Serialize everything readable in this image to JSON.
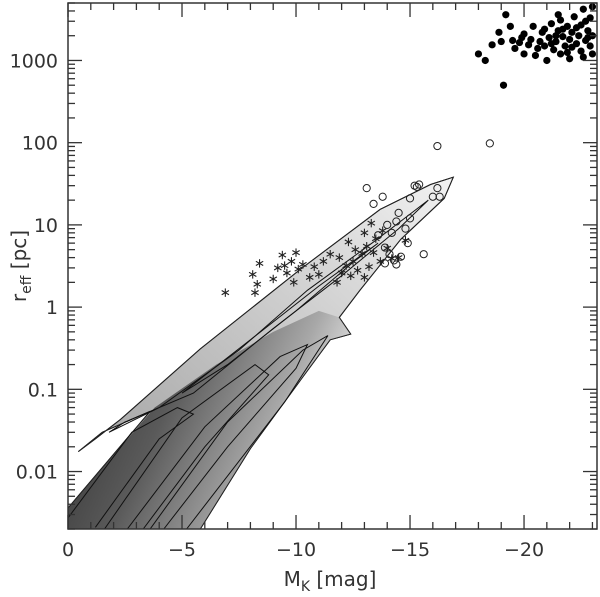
{
  "chart_data": {
    "type": "scatter",
    "title": "",
    "xlabel": {
      "main": "M",
      "sub": "K",
      "unit": "[mag]"
    },
    "ylabel": {
      "main": "r",
      "sub": "eff",
      "unit": "[pc]"
    },
    "xlim": [
      0,
      -23.2
    ],
    "ylim": [
      0.002,
      5000
    ],
    "yscale": "log",
    "x_ticks": [
      0,
      -5,
      -10,
      -15,
      -20
    ],
    "x_tick_labels": [
      "0",
      "−5",
      "−10",
      "−15",
      "−20"
    ],
    "y_ticks": [
      0.01,
      0.1,
      1,
      10,
      100,
      1000
    ],
    "y_tick_labels": [
      "0.01",
      "0.1",
      "1",
      "10",
      "100",
      "1000"
    ],
    "grid": false,
    "density_map": {
      "colormap": "grayscale",
      "outer_contour": [
        [
          0,
          0.002
        ],
        [
          0,
          0.0036
        ],
        [
          -3.6,
          0.054
        ],
        [
          -1.5,
          0.03
        ],
        [
          -0.45,
          0.0175
        ],
        [
          -1.2,
          0.025
        ],
        [
          -2.3,
          0.043
        ],
        [
          -5.8,
          0.31
        ],
        [
          -10.2,
          2.9
        ],
        [
          -13.7,
          15.5
        ],
        [
          -15.9,
          31
        ],
        [
          -16.9,
          38
        ],
        [
          -16.5,
          21
        ],
        [
          -14.6,
          6.7
        ],
        [
          -12.8,
          1.6
        ],
        [
          -11.9,
          0.75
        ],
        [
          -12.4,
          0.47
        ],
        [
          -11.5,
          0.4
        ],
        [
          -10.2,
          0.13
        ],
        [
          -8,
          0.019
        ],
        [
          -5.8,
          0.002
        ]
      ],
      "lower_lobe": [
        [
          0,
          0.002
        ],
        [
          0,
          0.0036
        ],
        [
          -3.8,
          0.06
        ],
        [
          -6.5,
          0.2
        ],
        [
          -9,
          0.5
        ],
        [
          -11,
          0.9
        ],
        [
          -11.9,
          0.75
        ],
        [
          -12.4,
          0.47
        ],
        [
          -11.5,
          0.4
        ],
        [
          -10.2,
          0.13
        ],
        [
          -8,
          0.019
        ],
        [
          -5.8,
          0.002
        ]
      ],
      "inner_contours": [
        [
          [
            -1.8,
            0.03
          ],
          [
            -4,
            0.06
          ],
          [
            -7.5,
            0.3
          ],
          [
            -10.5,
            1.6
          ],
          [
            -13.5,
            6.5
          ],
          [
            -15.8,
            20
          ],
          [
            -14.5,
            9
          ],
          [
            -12,
            2.4
          ],
          [
            -9,
            0.55
          ],
          [
            -5.5,
            0.09
          ],
          [
            -2.5,
            0.04
          ],
          [
            -1.8,
            0.03
          ]
        ],
        [
          [
            -5,
            0.09
          ],
          [
            -8,
            0.4
          ],
          [
            -11,
            1.8
          ],
          [
            -13.6,
            6
          ],
          [
            -12.5,
            3.5
          ],
          [
            -10,
            0.9
          ],
          [
            -7,
            0.2
          ],
          [
            -5,
            0.09
          ]
        ],
        [
          [
            0.1,
            0.0025
          ],
          [
            -2.8,
            0.03
          ],
          [
            -4.8,
            0.06
          ],
          [
            -5.5,
            0.05
          ],
          [
            -4,
            0.025
          ],
          [
            -1.2,
            0.0021
          ]
        ],
        [
          [
            -1.6,
            0.002
          ],
          [
            -5,
            0.045
          ],
          [
            -8.2,
            0.2
          ],
          [
            -8.8,
            0.15
          ],
          [
            -6,
            0.02
          ],
          [
            -3.3,
            0.002
          ]
        ],
        [
          [
            -2.6,
            0.002
          ],
          [
            -6,
            0.035
          ],
          [
            -9.3,
            0.25
          ],
          [
            -10.5,
            0.35
          ],
          [
            -10,
            0.18
          ],
          [
            -7,
            0.02
          ],
          [
            -4.2,
            0.002
          ]
        ],
        [
          [
            -3.6,
            0.002
          ],
          [
            -7,
            0.04
          ],
          [
            -10.3,
            0.3
          ],
          [
            -11.4,
            0.45
          ],
          [
            -9.5,
            0.07
          ],
          [
            -5.2,
            0.002
          ]
        ]
      ]
    },
    "series": [
      {
        "marker": "asterisk",
        "points": [
          [
            -6.9,
            1.5
          ],
          [
            -8.2,
            1.5
          ],
          [
            -8.3,
            1.9
          ],
          [
            -8.1,
            2.5
          ],
          [
            -8.4,
            3.4
          ],
          [
            -9.0,
            2.2
          ],
          [
            -9.2,
            3.0
          ],
          [
            -9.4,
            4.3
          ],
          [
            -9.6,
            2.6
          ],
          [
            -9.8,
            3.6
          ],
          [
            -9.9,
            2.0
          ],
          [
            -10.1,
            2.9
          ],
          [
            -10.3,
            3.3
          ],
          [
            -10.0,
            4.6
          ],
          [
            -10.8,
            3.1
          ],
          [
            -11.0,
            2.5
          ],
          [
            -11.2,
            3.6
          ],
          [
            -11.5,
            4.4
          ],
          [
            -11.8,
            2.0
          ],
          [
            -12.0,
            2.6
          ],
          [
            -12.2,
            3.2
          ],
          [
            -12.4,
            2.4
          ],
          [
            -12.5,
            3.6
          ],
          [
            -12.7,
            2.8
          ],
          [
            -12.9,
            4.5
          ],
          [
            -13.0,
            2.3
          ],
          [
            -13.2,
            3.1
          ],
          [
            -13.1,
            5.5
          ],
          [
            -13.4,
            4.6
          ],
          [
            -13.5,
            6.8
          ],
          [
            -13.7,
            3.6
          ],
          [
            -13.8,
            8.5
          ],
          [
            -14.0,
            5.2
          ],
          [
            -14.2,
            3.9
          ],
          [
            -14.5,
            4.0
          ],
          [
            -13.0,
            8.0
          ],
          [
            -13.3,
            10.5
          ],
          [
            -12.6,
            5.0
          ],
          [
            -11.9,
            4.0
          ],
          [
            -14.8,
            6.5
          ],
          [
            -9.5,
            3.2
          ],
          [
            -10.6,
            2.3
          ],
          [
            -12.3,
            6.2
          ]
        ]
      },
      {
        "marker": "open-circle",
        "points": [
          [
            -13.1,
            28
          ],
          [
            -13.4,
            18
          ],
          [
            -13.8,
            22
          ],
          [
            -14.0,
            10
          ],
          [
            -14.4,
            11
          ],
          [
            -14.8,
            9
          ],
          [
            -15.0,
            12
          ],
          [
            -15.2,
            30
          ],
          [
            -15.4,
            31
          ],
          [
            -15.3,
            29
          ],
          [
            -16.0,
            22
          ],
          [
            -16.2,
            28
          ],
          [
            -16.3,
            22
          ],
          [
            -16.2,
            91
          ],
          [
            -18.5,
            98
          ],
          [
            -15.6,
            4.4
          ],
          [
            -14.6,
            4.1
          ],
          [
            -14.3,
            3.7
          ],
          [
            -14.1,
            4.4
          ],
          [
            -13.9,
            5.3
          ],
          [
            -14.9,
            6.0
          ],
          [
            -13.6,
            7.5
          ],
          [
            -14.2,
            8.0
          ],
          [
            -15.0,
            21
          ],
          [
            -14.5,
            14
          ],
          [
            -13.9,
            3.4
          ],
          [
            -14.4,
            3.3
          ]
        ]
      },
      {
        "marker": "filled-circle",
        "points": [
          [
            -18.0,
            1200
          ],
          [
            -18.3,
            1000
          ],
          [
            -18.9,
            2200
          ],
          [
            -19.1,
            500
          ],
          [
            -19.2,
            3600
          ],
          [
            -19.4,
            2600
          ],
          [
            -18.6,
            1550
          ],
          [
            -19.6,
            1400
          ],
          [
            -19.8,
            1650
          ],
          [
            -20.0,
            1200
          ],
          [
            -20.0,
            2100
          ],
          [
            -20.3,
            1800
          ],
          [
            -20.5,
            1150
          ],
          [
            -20.4,
            2600
          ],
          [
            -20.7,
            1700
          ],
          [
            -20.8,
            2200
          ],
          [
            -20.9,
            1500
          ],
          [
            -21.0,
            1000
          ],
          [
            -21.1,
            1900
          ],
          [
            -21.2,
            2800
          ],
          [
            -21.3,
            1350
          ],
          [
            -21.4,
            1700
          ],
          [
            -21.5,
            2300
          ],
          [
            -21.6,
            1200
          ],
          [
            -21.6,
            3100
          ],
          [
            -21.7,
            1950
          ],
          [
            -21.8,
            1500
          ],
          [
            -21.9,
            2600
          ],
          [
            -22.0,
            1050
          ],
          [
            -22.0,
            1800
          ],
          [
            -22.1,
            2200
          ],
          [
            -22.2,
            3400
          ],
          [
            -22.3,
            1600
          ],
          [
            -22.4,
            2000
          ],
          [
            -22.5,
            1300
          ],
          [
            -22.5,
            2700
          ],
          [
            -22.6,
            4200
          ],
          [
            -22.7,
            1750
          ],
          [
            -22.8,
            2300
          ],
          [
            -22.9,
            3300
          ],
          [
            -22.9,
            1500
          ],
          [
            -23.0,
            2000
          ],
          [
            -23.0,
            4500
          ],
          [
            -22.6,
            1100
          ],
          [
            -21.4,
            2000
          ],
          [
            -20.6,
            1400
          ],
          [
            -19.9,
            1900
          ],
          [
            -21.9,
            1250
          ],
          [
            -22.3,
            2500
          ],
          [
            -22.8,
            1900
          ],
          [
            -21.2,
            1600
          ],
          [
            -20.2,
            1550
          ],
          [
            -19.5,
            1750
          ],
          [
            -21.7,
            2400
          ],
          [
            -22.7,
            3000
          ],
          [
            -23.0,
            1200
          ],
          [
            -22.1,
            1450
          ],
          [
            -20.9,
            2400
          ],
          [
            -19.0,
            1700
          ],
          [
            -21.5,
            3600
          ]
        ]
      }
    ],
    "legend": "none"
  }
}
